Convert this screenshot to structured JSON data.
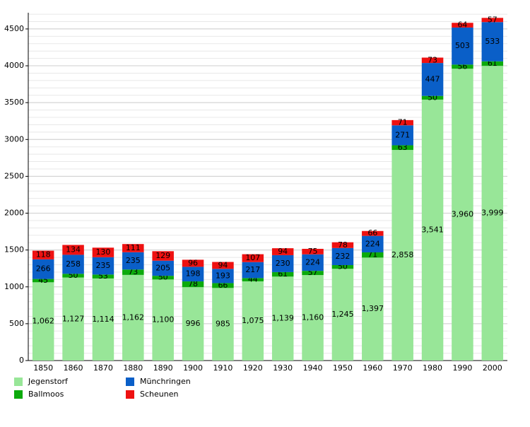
{
  "chart_data": {
    "type": "stacked_bar",
    "categories": [
      "1850",
      "1860",
      "1870",
      "1880",
      "1890",
      "1900",
      "1910",
      "1920",
      "1930",
      "1940",
      "1950",
      "1960",
      "1970",
      "1980",
      "1990",
      "2000"
    ],
    "series": [
      {
        "name": "Jegenstorf",
        "color": "#98e698",
        "values": [
          1062,
          1127,
          1114,
          1162,
          1100,
          996,
          985,
          1075,
          1139,
          1160,
          1245,
          1397,
          2858,
          3541,
          3960,
          3999
        ],
        "value_labels": [
          "1,062",
          "1,127",
          "1,114",
          "1,162",
          "1,100",
          "996",
          "985",
          "1,075",
          "1,139",
          "1,160",
          "1,245",
          "1,397",
          "2,858",
          "3,541",
          "3,960",
          "3,999"
        ]
      },
      {
        "name": "Ballmoos",
        "color": "#0caa0c",
        "values": [
          45,
          50,
          53,
          73,
          50,
          78,
          66,
          44,
          61,
          57,
          50,
          71,
          63,
          50,
          56,
          61
        ]
      },
      {
        "name": "Münchringen",
        "color": "#0a5fc8",
        "values": [
          266,
          258,
          235,
          235,
          205,
          198,
          193,
          217,
          230,
          224,
          232,
          224,
          271,
          447,
          503,
          533
        ]
      },
      {
        "name": "Scheunen",
        "color": "#ee1111",
        "values": [
          118,
          134,
          130,
          111,
          129,
          96,
          94,
          107,
          94,
          75,
          78,
          66,
          71,
          73,
          64,
          57
        ]
      }
    ],
    "ylim": [
      0,
      4720
    ],
    "yticks": [
      0,
      500,
      1000,
      1500,
      2000,
      2500,
      3000,
      3500,
      4000,
      4500
    ],
    "grid": true
  }
}
